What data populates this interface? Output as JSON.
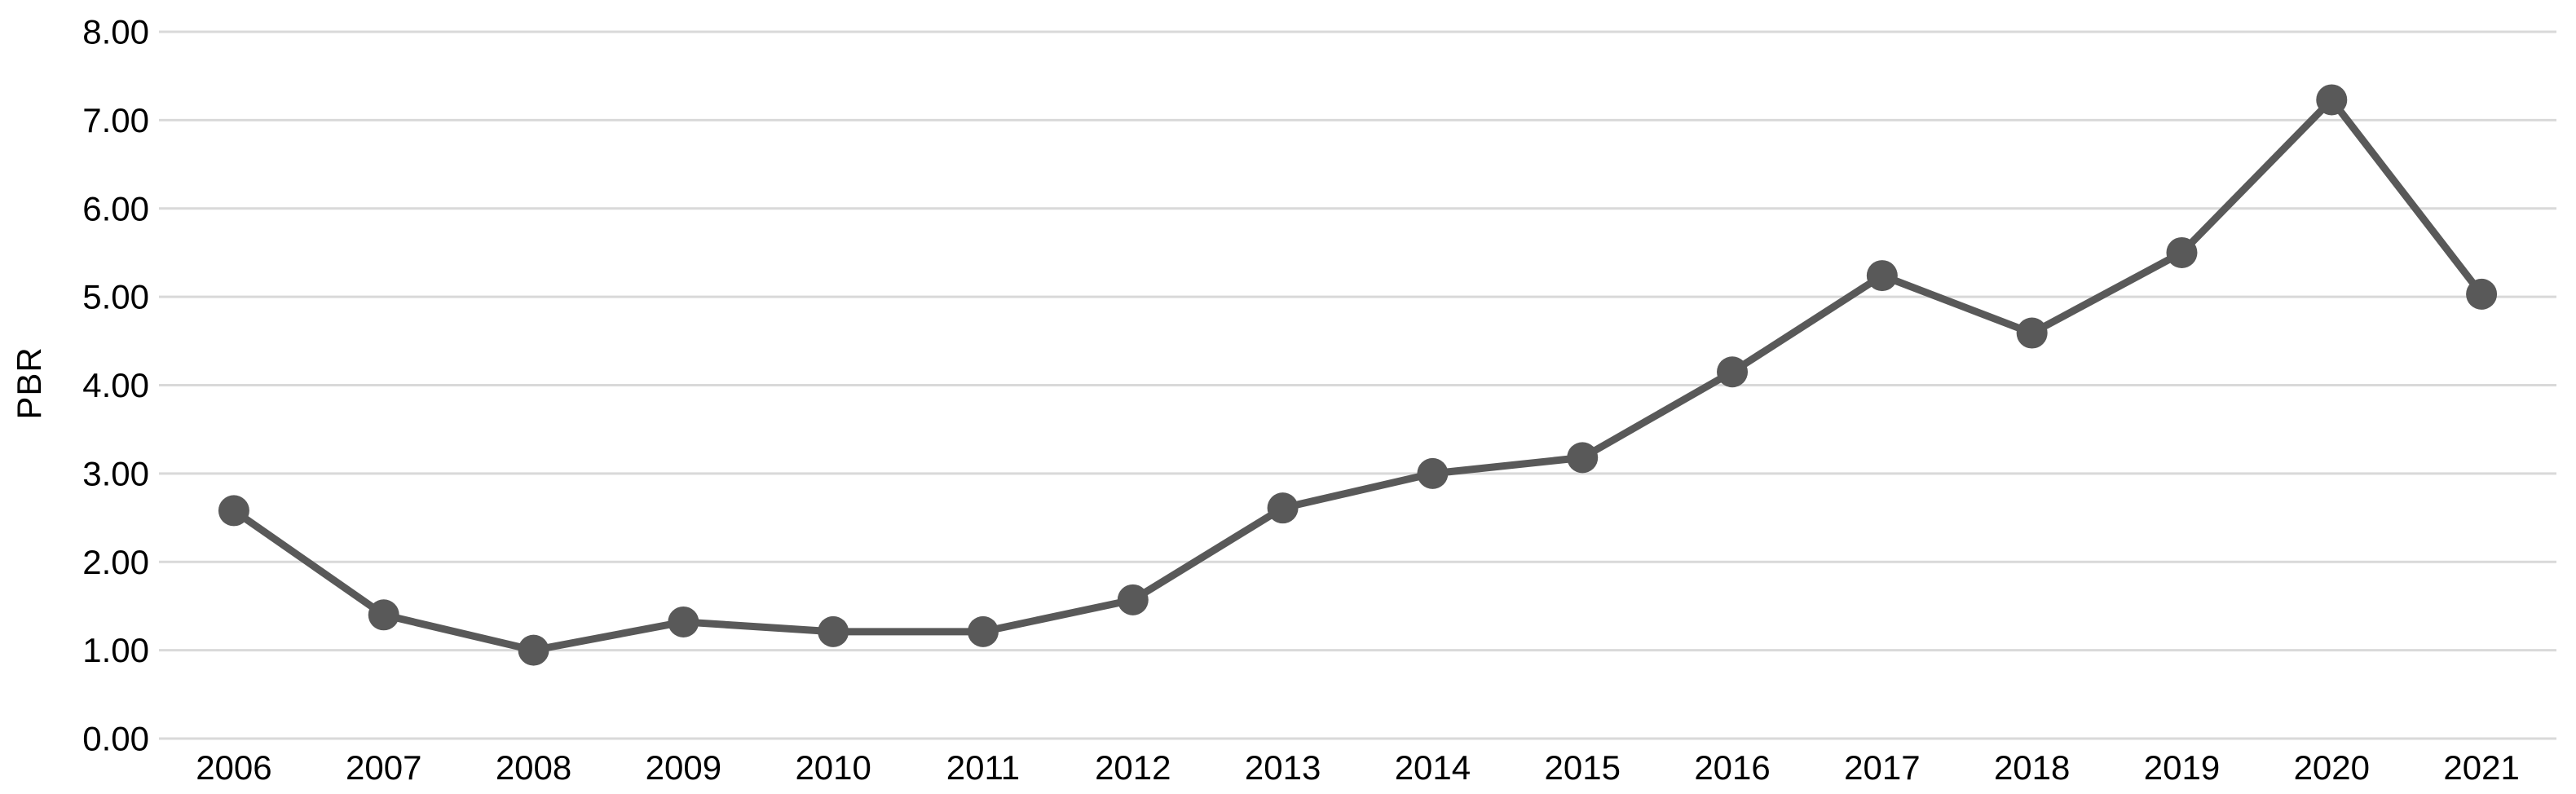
{
  "chart_data": {
    "type": "line",
    "title": "",
    "xlabel": "",
    "ylabel": "PBR",
    "categories": [
      "2006",
      "2007",
      "2008",
      "2009",
      "2010",
      "2011",
      "2012",
      "2013",
      "2014",
      "2015",
      "2016",
      "2017",
      "2018",
      "2019",
      "2020",
      "2021"
    ],
    "series": [
      {
        "name": "PBR",
        "values": [
          2.58,
          1.4,
          1.0,
          1.32,
          1.21,
          1.21,
          1.57,
          2.61,
          3.0,
          3.18,
          4.15,
          5.24,
          4.59,
          5.5,
          7.23,
          5.03
        ]
      }
    ],
    "ylim": [
      0,
      8
    ],
    "y_ticks": [
      "0.00",
      "1.00",
      "2.00",
      "3.00",
      "4.00",
      "5.00",
      "6.00",
      "7.00",
      "8.00"
    ],
    "grid": true,
    "legend_position": "none",
    "marker_style": "circle",
    "colors": {
      "line": "#595959",
      "marker": "#595959",
      "gridline": "#d9d9d9",
      "text": "#000000",
      "background": "#ffffff"
    }
  }
}
